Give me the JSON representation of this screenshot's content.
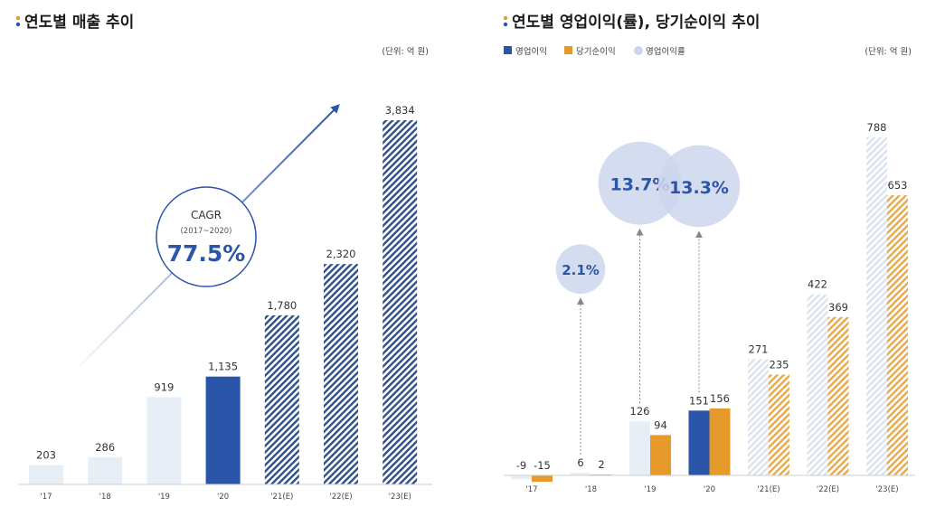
{
  "colors": {
    "accent_blue": "#2b55a8",
    "accent_orange": "#e69a2c",
    "light_bar": "#e7eef6",
    "bubble": "#cdd6ec",
    "forecast_hatch": "#2f4f8a"
  },
  "chart_data": [
    {
      "type": "bar",
      "title": "연도별 매출 추이",
      "unit_label": "(단위: 억 원)",
      "categories": [
        "'17",
        "'18",
        "'19",
        "'20",
        "'21(E)",
        "'22(E)",
        "'23(E)"
      ],
      "values": [
        203,
        286,
        919,
        1135,
        1780,
        2320,
        3834
      ],
      "value_labels": [
        "203",
        "286",
        "919",
        "1,135",
        "1,780",
        "2,320",
        "3,834"
      ],
      "highlight_index": 3,
      "forecast_from_index": 4,
      "ylim": [
        0,
        3834
      ],
      "annotation": {
        "label": "CAGR",
        "period": "(2017~2020)",
        "value": "77.5%"
      }
    },
    {
      "type": "bar",
      "title": "연도별 영업이익(률), 당기순이익 추이",
      "unit_label": "(단위: 억 원)",
      "categories": [
        "'17",
        "'18",
        "'19",
        "'20",
        "'21(E)",
        "'22(E)",
        "'23(E)"
      ],
      "legend": [
        "영업이익",
        "당기순이익",
        "영업이익률"
      ],
      "series": [
        {
          "name": "영업이익",
          "values": [
            -9,
            6,
            126,
            151,
            271,
            422,
            788
          ],
          "value_labels": [
            "-9",
            "6",
            "126",
            "151",
            "271",
            "422",
            "788"
          ]
        },
        {
          "name": "당기순이익",
          "values": [
            -15,
            2,
            94,
            156,
            235,
            369,
            653
          ],
          "value_labels": [
            "-15",
            "2",
            "94",
            "156",
            "235",
            "369",
            "653"
          ]
        }
      ],
      "margin_rates": [
        {
          "category_index": 1,
          "value": 2.1,
          "label": "2.1%"
        },
        {
          "category_index": 2,
          "value": 13.7,
          "label": "13.7%"
        },
        {
          "category_index": 3,
          "value": 13.3,
          "label": "13.3%"
        }
      ],
      "highlight_index": 3,
      "forecast_from_index": 4,
      "ylim": [
        -15,
        788
      ]
    }
  ]
}
